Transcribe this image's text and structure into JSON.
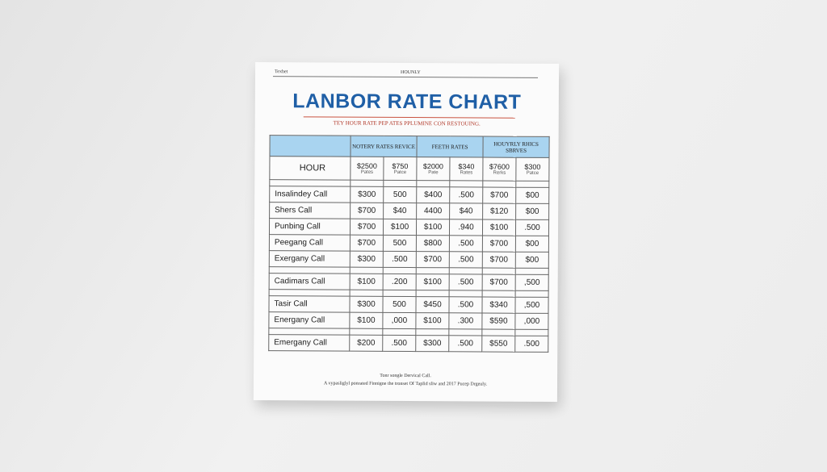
{
  "header": {
    "left": "Texhet",
    "center": "HOUNLY"
  },
  "title": "LANBOR RATE CHART",
  "subtitle": "TEY HOUR RATE PEP ATES PPLUMINE CON RESTOUING.",
  "table": {
    "groups": [
      "NOTERY RATES REVICE",
      "FEETH RATES",
      "HOUYRLY RHICS SBRVES"
    ],
    "subheader": {
      "label": "HOUR",
      "cells": [
        [
          "$2500",
          "Pates"
        ],
        [
          "$750",
          "Patce"
        ],
        [
          "$2000",
          "Pate"
        ],
        [
          "$340",
          "Rates"
        ],
        [
          "$7600",
          "Rerks"
        ],
        [
          "$300",
          "Patce"
        ]
      ]
    },
    "rows": [
      [
        "Insalindey Call",
        "$300",
        "500",
        "$400",
        ".500",
        "$700",
        "$00"
      ],
      [
        "Shers Call",
        "$700",
        "$40",
        "4400",
        "$40",
        "$120",
        "$00"
      ],
      [
        "Punbing Call",
        "$700",
        "$100",
        "$100",
        ".940",
        "$100",
        ".500"
      ],
      [
        "Peegang Call",
        "$700",
        "500",
        "$800",
        ".500",
        "$700",
        "$00"
      ],
      [
        "Exergany Call",
        "$300",
        ".500",
        "$700",
        ".500",
        "$700",
        "$00"
      ],
      [
        "Cadimars Call",
        "$100",
        ".200",
        "$100",
        ".500",
        "$700",
        ",500"
      ],
      [
        "Tasir Call",
        "$300",
        "500",
        "$450",
        ".500",
        "$340",
        ",500"
      ],
      [
        "Energany Call",
        "$100",
        ",000",
        "$100",
        ".300",
        "$590",
        ",000"
      ],
      [
        "Emergany Call",
        "$200",
        ".500",
        "$300",
        ".500",
        "$550",
        ".500"
      ]
    ]
  },
  "footer": [
    "Tonr songle Dervical Call.",
    "A vypasliglyl ponrated Finnigne the tronset Of Taplid sliw and 2017 Pucep Drgeuly."
  ]
}
